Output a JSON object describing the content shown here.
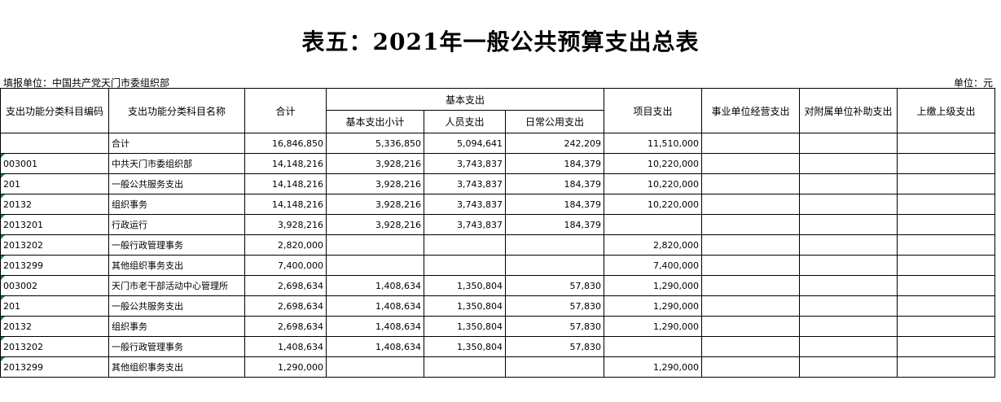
{
  "title": "表五：2021年一般公共预算支出总表",
  "unit_left": "填报单位：中国共产党天门市委组织部",
  "unit_right": "单位：元",
  "headers": {
    "code": "支出功能分类科目编码",
    "name": "支出功能分类科目名称",
    "total": "合计",
    "basic": "基本支出",
    "basic_sub": "基本支出小计",
    "personnel": "人员支出",
    "daily": "日常公用支出",
    "project": "项目支出",
    "business": "事业单位经营支出",
    "subsidy": "对附属单位补助支出",
    "upper": "上缴上级支出"
  },
  "rows": [
    {
      "code": "",
      "name": "合计",
      "total": "16,846,850",
      "basic_sub": "5,336,850",
      "personnel": "5,094,641",
      "daily": "242,209",
      "project": "11,510,000",
      "business": "",
      "subsidy": "",
      "upper": ""
    },
    {
      "code": "003001",
      "name": "中共天门市委组织部",
      "total": "14,148,216",
      "basic_sub": "3,928,216",
      "personnel": "3,743,837",
      "daily": "184,379",
      "project": "10,220,000",
      "business": "",
      "subsidy": "",
      "upper": ""
    },
    {
      "code": "201",
      "name": "一般公共服务支出",
      "total": "14,148,216",
      "basic_sub": "3,928,216",
      "personnel": "3,743,837",
      "daily": "184,379",
      "project": "10,220,000",
      "business": "",
      "subsidy": "",
      "upper": ""
    },
    {
      "code": "20132",
      "name": "组织事务",
      "total": "14,148,216",
      "basic_sub": "3,928,216",
      "personnel": "3,743,837",
      "daily": "184,379",
      "project": "10,220,000",
      "business": "",
      "subsidy": "",
      "upper": ""
    },
    {
      "code": "2013201",
      "name": "行政运行",
      "total": "3,928,216",
      "basic_sub": "3,928,216",
      "personnel": "3,743,837",
      "daily": "184,379",
      "project": "",
      "business": "",
      "subsidy": "",
      "upper": ""
    },
    {
      "code": "2013202",
      "name": "一般行政管理事务",
      "total": "2,820,000",
      "basic_sub": "",
      "personnel": "",
      "daily": "",
      "project": "2,820,000",
      "business": "",
      "subsidy": "",
      "upper": ""
    },
    {
      "code": "2013299",
      "name": "其他组织事务支出",
      "total": "7,400,000",
      "basic_sub": "",
      "personnel": "",
      "daily": "",
      "project": "7,400,000",
      "business": "",
      "subsidy": "",
      "upper": ""
    },
    {
      "code": "003002",
      "name": "天门市老干部活动中心管理所",
      "total": "2,698,634",
      "basic_sub": "1,408,634",
      "personnel": "1,350,804",
      "daily": "57,830",
      "project": "1,290,000",
      "business": "",
      "subsidy": "",
      "upper": ""
    },
    {
      "code": "201",
      "name": "一般公共服务支出",
      "total": "2,698,634",
      "basic_sub": "1,408,634",
      "personnel": "1,350,804",
      "daily": "57,830",
      "project": "1,290,000",
      "business": "",
      "subsidy": "",
      "upper": ""
    },
    {
      "code": "20132",
      "name": "组织事务",
      "total": "2,698,634",
      "basic_sub": "1,408,634",
      "personnel": "1,350,804",
      "daily": "57,830",
      "project": "1,290,000",
      "business": "",
      "subsidy": "",
      "upper": ""
    },
    {
      "code": "2013202",
      "name": "一般行政管理事务",
      "total": "1,408,634",
      "basic_sub": "1,408,634",
      "personnel": "1,350,804",
      "daily": "57,830",
      "project": "",
      "business": "",
      "subsidy": "",
      "upper": ""
    },
    {
      "code": "2013299",
      "name": "其他组织事务支出",
      "total": "1,290,000",
      "basic_sub": "",
      "personnel": "",
      "daily": "",
      "project": "1,290,000",
      "business": "",
      "subsidy": "",
      "upper": ""
    }
  ]
}
